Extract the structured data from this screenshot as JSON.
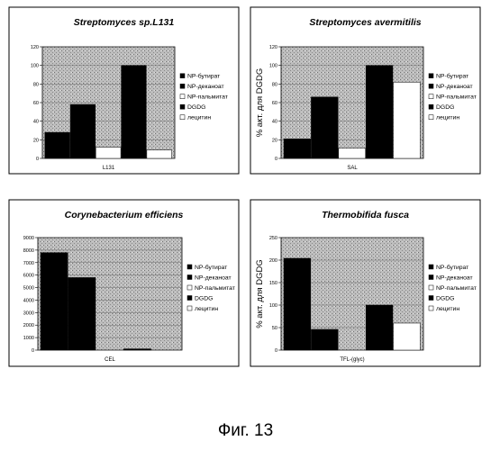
{
  "figure_caption": "Фиг. 13",
  "colors": {
    "plot_background": "#bdbdbd",
    "bar_black": "#000000",
    "bar_white": "#ffffff",
    "frame": "#000000"
  },
  "chart_data": [
    {
      "type": "bar",
      "title": "Streptomyces sp.L131",
      "ylabel": "",
      "xlabel": "L131",
      "ylim": [
        0,
        120
      ],
      "yticks": [
        0,
        20,
        40,
        60,
        80,
        100,
        120
      ],
      "legend_position": "right",
      "series": [
        {
          "name": "NP-бутират",
          "values": [
            28
          ],
          "fill": "black"
        },
        {
          "name": "NP-деканоат",
          "values": [
            58
          ],
          "fill": "black"
        },
        {
          "name": "NP-пальмитат",
          "values": [
            12
          ],
          "fill": "white"
        },
        {
          "name": "DGDG",
          "values": [
            100
          ],
          "fill": "black"
        },
        {
          "name": "лецитин",
          "values": [
            9
          ],
          "fill": "white"
        }
      ]
    },
    {
      "type": "bar",
      "title": "Streptomyces avermitilis",
      "ylabel": "% акт. для DGDG",
      "xlabel": "SAL",
      "ylim": [
        0,
        120
      ],
      "yticks": [
        0,
        20,
        40,
        60,
        80,
        100,
        120
      ],
      "legend_position": "right",
      "series": [
        {
          "name": "NP-бутират",
          "values": [
            21
          ],
          "fill": "black"
        },
        {
          "name": "NP-деканоат",
          "values": [
            66
          ],
          "fill": "black"
        },
        {
          "name": "NP-пальмитат",
          "values": [
            11
          ],
          "fill": "white"
        },
        {
          "name": "DGDG",
          "values": [
            100
          ],
          "fill": "black"
        },
        {
          "name": "лецитин",
          "values": [
            82
          ],
          "fill": "white"
        }
      ]
    },
    {
      "type": "bar",
      "title": "Corynebacterium efficiens",
      "ylabel": "",
      "xlabel": "CEL",
      "ylim": [
        0,
        9000
      ],
      "yticks": [
        0,
        1000,
        2000,
        3000,
        4000,
        5000,
        6000,
        7000,
        8000,
        9000
      ],
      "legend_position": "right",
      "series": [
        {
          "name": "NP-бутират",
          "values": [
            7800
          ],
          "fill": "black"
        },
        {
          "name": "NP-деканоат",
          "values": [
            5800
          ],
          "fill": "black"
        },
        {
          "name": "NP-пальмитат",
          "values": [
            0
          ],
          "fill": "white"
        },
        {
          "name": "DGDG",
          "values": [
            100
          ],
          "fill": "black"
        },
        {
          "name": "лецитин",
          "values": [
            0
          ],
          "fill": "white"
        }
      ]
    },
    {
      "type": "bar",
      "title": "Thermobifida fusca",
      "ylabel": "% акт. для DGDG",
      "xlabel": "TFL-(glyc)",
      "ylim": [
        0,
        250
      ],
      "yticks": [
        0,
        50,
        100,
        150,
        200,
        250
      ],
      "legend_position": "right",
      "series": [
        {
          "name": "NP-бутират",
          "values": [
            204
          ],
          "fill": "black"
        },
        {
          "name": "NP-деканоат",
          "values": [
            46
          ],
          "fill": "black"
        },
        {
          "name": "NP-пальмитат",
          "values": [
            0
          ],
          "fill": "white"
        },
        {
          "name": "DGDG",
          "values": [
            100
          ],
          "fill": "black"
        },
        {
          "name": "лецитин",
          "values": [
            60
          ],
          "fill": "white"
        }
      ]
    }
  ]
}
